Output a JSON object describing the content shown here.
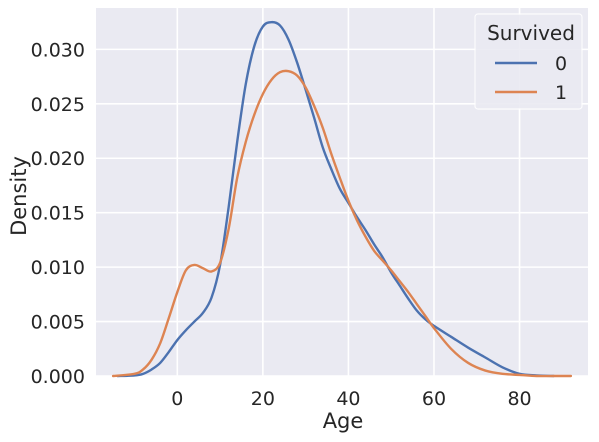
{
  "chart_data": {
    "type": "line",
    "title": "",
    "xlabel": "Age",
    "ylabel": "Density",
    "xlim": [
      -19,
      96
    ],
    "ylim": [
      0,
      0.0338
    ],
    "xticks": [
      0,
      20,
      40,
      60,
      80
    ],
    "xtick_labels": [
      "0",
      "20",
      "40",
      "60",
      "80"
    ],
    "yticks": [
      0.0,
      0.005,
      0.01,
      0.015,
      0.02,
      0.025,
      0.03
    ],
    "ytick_labels": [
      "0.000",
      "0.005",
      "0.010",
      "0.015",
      "0.020",
      "0.025",
      "0.030"
    ],
    "grid": true,
    "background": "#eaeaf2",
    "grid_color": "#ffffff",
    "legend": {
      "title": "Survived",
      "placement": "top-right"
    },
    "series": [
      {
        "name": "0",
        "color": "#4c72b0",
        "x": [
          -14,
          -10,
          -8,
          -6,
          -4,
          -2,
          0,
          2,
          4,
          6,
          8,
          10,
          12,
          14,
          16,
          18,
          20,
          22,
          24,
          26,
          28,
          30,
          32,
          34,
          36,
          38,
          40,
          42,
          44,
          46,
          48,
          50,
          52,
          54,
          56,
          58,
          60,
          64,
          68,
          72,
          76,
          80,
          84,
          88
        ],
        "y": [
          0.0,
          5e-05,
          0.0002,
          0.0006,
          0.0012,
          0.0022,
          0.0033,
          0.0042,
          0.005,
          0.0058,
          0.0072,
          0.0102,
          0.0155,
          0.0215,
          0.0268,
          0.0303,
          0.0321,
          0.0325,
          0.0322,
          0.0309,
          0.0288,
          0.0263,
          0.0237,
          0.021,
          0.019,
          0.0172,
          0.0159,
          0.0146,
          0.0134,
          0.0121,
          0.0109,
          0.0095,
          0.0083,
          0.0071,
          0.006,
          0.0052,
          0.0046,
          0.0036,
          0.0026,
          0.0017,
          0.0008,
          0.0002,
          5e-05,
          0.0
        ]
      },
      {
        "name": "1",
        "color": "#dd8452",
        "x": [
          -15,
          -10,
          -8,
          -6,
          -4,
          -2,
          0,
          2,
          4,
          6,
          8,
          10,
          12,
          14,
          16,
          18,
          20,
          22,
          24,
          26,
          28,
          30,
          32,
          34,
          36,
          38,
          40,
          42,
          44,
          46,
          48,
          50,
          52,
          54,
          56,
          58,
          60,
          64,
          68,
          72,
          76,
          80,
          84,
          88,
          92
        ],
        "y": [
          0.0,
          0.0002,
          0.0006,
          0.0015,
          0.003,
          0.0053,
          0.0077,
          0.0097,
          0.0102,
          0.0099,
          0.0096,
          0.0104,
          0.0135,
          0.0182,
          0.0215,
          0.024,
          0.0259,
          0.0272,
          0.0279,
          0.028,
          0.0276,
          0.0265,
          0.0248,
          0.0228,
          0.0204,
          0.0182,
          0.0161,
          0.0143,
          0.0128,
          0.0115,
          0.0106,
          0.0097,
          0.0087,
          0.0077,
          0.0066,
          0.0055,
          0.0044,
          0.0025,
          0.0012,
          0.0005,
          0.0002,
          0.0001,
          0.0,
          0.0,
          0.0
        ]
      }
    ]
  }
}
